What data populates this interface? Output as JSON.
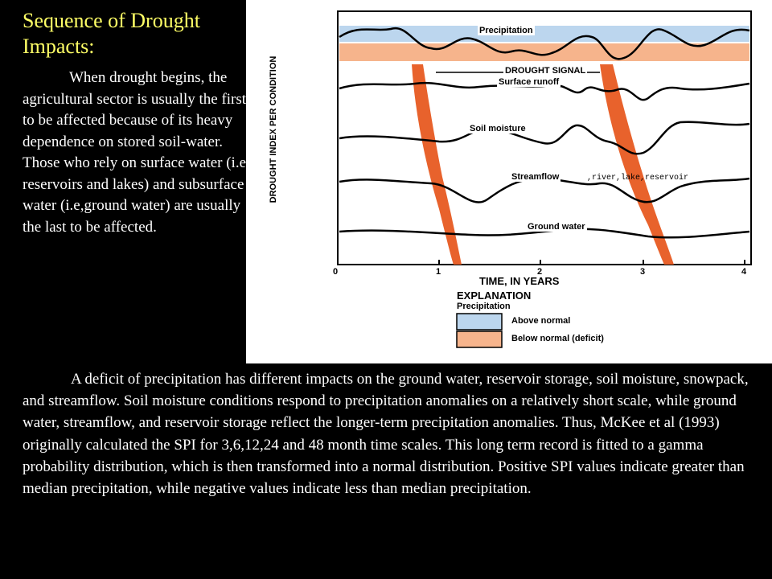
{
  "slide": {
    "title": "Sequence of Drought Impacts:",
    "left_paragraph": "When drought begins, the agricultural sector is usually the first to be affected because of its heavy dependence on stored soil-water. Those who rely on surface water (i.e, reservoirs and lakes) and subsurface water (i.e,ground water) are usually the last to be affected.",
    "bottom_paragraph": "A deficit of precipitation has different impacts on the ground water, reservoir storage, soil moisture, snowpack, and streamflow. Soil moisture conditions respond to precipitation anomalies on a relatively short scale, while ground water, streamflow, and reservoir storage reflect the longer-term precipitation anomalies. Thus, McKee et al (1993) originally calculated the SPI for 3,6,12,24 and 48 month time scales. This long term record is fitted to a gamma probability distribution, which is then transformed into a normal distribution. Positive SPI values indicate greater than median precipitation, while negative values indicate less than median precipitation."
  },
  "figure": {
    "y_axis_label": "DROUGHT INDEX PER CONDITION",
    "x_axis_title": "TIME, IN YEARS",
    "x_ticks": [
      "0",
      "1",
      "2",
      "3",
      "4"
    ],
    "curves": {
      "precipitation": "Precipitation",
      "drought_signal": "DROUGHT SIGNAL",
      "surface_runoff": "Surface runoff",
      "soil_moisture": "Soil moisture",
      "streamflow": "Streamflow",
      "streamflow_note": ",river,lake,reservoir",
      "ground_water": "Ground water"
    },
    "explanation": {
      "title": "EXPLANATION",
      "subtitle": "Precipitation",
      "above_normal": "Above normal",
      "below_normal": "Below normal (deficit)"
    },
    "colors": {
      "above_normal": "#bcd6ee",
      "below_normal": "#f6b48c",
      "drought_signal_band": "#e8622c",
      "title_color": "#ffff66"
    }
  }
}
